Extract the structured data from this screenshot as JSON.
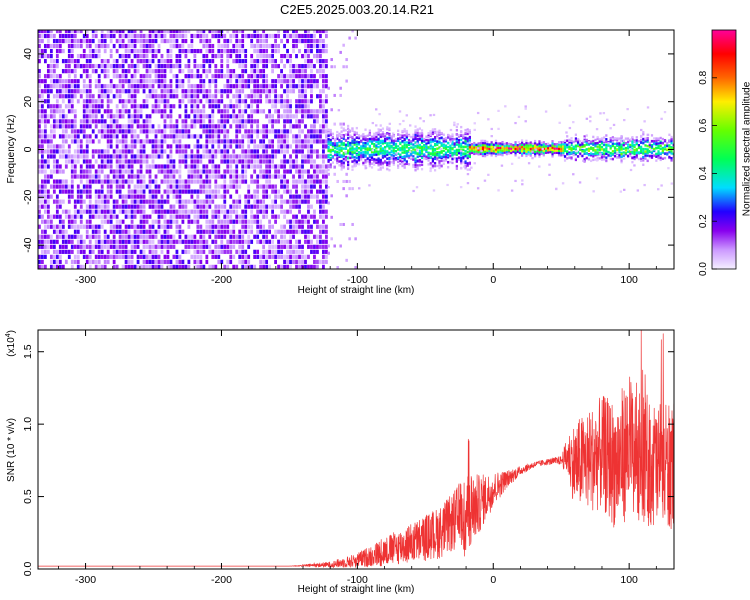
{
  "title": "C2E5.2025.003.20.14.R21",
  "chart_data": [
    {
      "type": "heatmap",
      "xlabel": "Height of straight line (km)",
      "ylabel": "Frequency (Hz)",
      "xlim": [
        -335,
        133
      ],
      "ylim": [
        -50,
        50
      ],
      "xticks": [
        -300,
        -200,
        -100,
        0,
        100
      ],
      "xtick_labels": [
        "-300",
        "-200",
        "-100",
        "0",
        "100"
      ],
      "yticks": [
        -40,
        -20,
        0,
        20,
        40
      ],
      "ytick_labels": [
        "-40",
        "-20",
        "0",
        "20",
        "40"
      ],
      "grid": false,
      "colorbar": {
        "label": "Normalized spectral amplitude",
        "range": [
          0,
          1
        ],
        "ticks": [
          0.0,
          0.2,
          0.4,
          0.6,
          0.8
        ],
        "tick_labels": [
          "0.0",
          "0.2",
          "0.4",
          "0.6",
          "0.8"
        ],
        "colors": [
          "#f5f0ff",
          "#cc99ff",
          "#8800ee",
          "#2200ff",
          "#00ddff",
          "#00ff55",
          "#66ff00",
          "#ffee00",
          "#ff6600",
          "#ff0000",
          "#ff0099"
        ]
      },
      "regions": [
        {
          "x_range": [
            -335,
            -122
          ],
          "description_values": {
            "freq_range": [
              -50,
              50
            ],
            "amplitude": [
              0.05,
              0.2
            ]
          }
        },
        {
          "x_range": [
            -122,
            -18
          ],
          "description_values": {
            "center_freq": 0,
            "spread": [
              -8,
              8
            ],
            "peak_amplitude": 0.5
          }
        },
        {
          "x_range": [
            -18,
            52
          ],
          "description_values": {
            "center_freq": 0,
            "peak_amplitude": 0.9
          }
        },
        {
          "x_range": [
            52,
            133
          ],
          "description_values": {
            "center_freq": 0,
            "spread": [
              -5,
              5
            ],
            "peak_amplitude": 0.6
          }
        }
      ]
    },
    {
      "type": "line",
      "xlabel": "Height of straight line (km)",
      "ylabel": "SNR (10 * v/v)",
      "y_multiplier_label": "(x10",
      "y_multiplier_exp": "4",
      "y_multiplier_close": ")",
      "xlim": [
        -335,
        133
      ],
      "ylim": [
        0,
        1.65
      ],
      "xticks": [
        -300,
        -200,
        -100,
        0,
        100
      ],
      "xtick_labels": [
        "-300",
        "-200",
        "-100",
        "0",
        "100"
      ],
      "yticks": [
        0,
        0.5,
        1.0,
        1.5
      ],
      "ytick_labels": [
        "0.0",
        "0.5",
        "1.0",
        "1.5"
      ],
      "grid": false,
      "series": [
        {
          "color": "#ee3333",
          "x": [
            -335,
            -300,
            -250,
            -200,
            -150,
            -120,
            -100,
            -80,
            -60,
            -40,
            -30,
            -20,
            -10,
            0,
            10,
            20,
            30,
            40,
            50,
            55,
            60,
            70,
            80,
            90,
            100,
            110,
            120,
            133
          ],
          "y": [
            0.02,
            0.02,
            0.02,
            0.02,
            0.02,
            0.03,
            0.06,
            0.12,
            0.18,
            0.25,
            0.32,
            0.38,
            0.45,
            0.55,
            0.62,
            0.68,
            0.72,
            0.74,
            0.75,
            0.78,
            0.72,
            0.75,
            0.8,
            0.72,
            0.85,
            0.78,
            0.7,
            0.7
          ],
          "noise_amplitude": [
            0.0,
            0.0,
            0.0,
            0.0,
            0.0,
            0.02,
            0.05,
            0.1,
            0.14,
            0.18,
            0.2,
            0.3,
            0.2,
            0.12,
            0.06,
            0.03,
            0.02,
            0.02,
            0.03,
            0.15,
            0.3,
            0.35,
            0.4,
            0.45,
            0.5,
            0.45,
            0.45,
            0.45
          ]
        }
      ]
    }
  ]
}
